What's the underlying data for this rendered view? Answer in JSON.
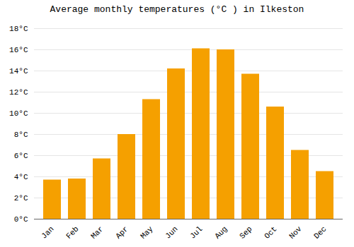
{
  "chart_data": {
    "type": "bar",
    "title": "Average monthly temperatures (°C ) in Ilkeston",
    "categories": [
      "Jan",
      "Feb",
      "Mar",
      "Apr",
      "May",
      "Jun",
      "Jul",
      "Aug",
      "Sep",
      "Oct",
      "Nov",
      "Dec"
    ],
    "values": [
      3.7,
      3.8,
      5.7,
      8.0,
      11.3,
      14.2,
      16.1,
      16.0,
      13.7,
      10.6,
      6.5,
      4.5
    ],
    "color": "#F5A000",
    "ylim": [
      0,
      18
    ],
    "yticks": [
      {
        "value": 0,
        "label": "0°C"
      },
      {
        "value": 2,
        "label": "2°C"
      },
      {
        "value": 4,
        "label": "4°C"
      },
      {
        "value": 6,
        "label": "6°C"
      },
      {
        "value": 8,
        "label": "8°C"
      },
      {
        "value": 10,
        "label": "10°C"
      },
      {
        "value": 12,
        "label": "12°C"
      },
      {
        "value": 14,
        "label": "14°C"
      },
      {
        "value": 16,
        "label": "16°C"
      },
      {
        "value": 18,
        "label": "18°C"
      }
    ],
    "grid": true
  }
}
